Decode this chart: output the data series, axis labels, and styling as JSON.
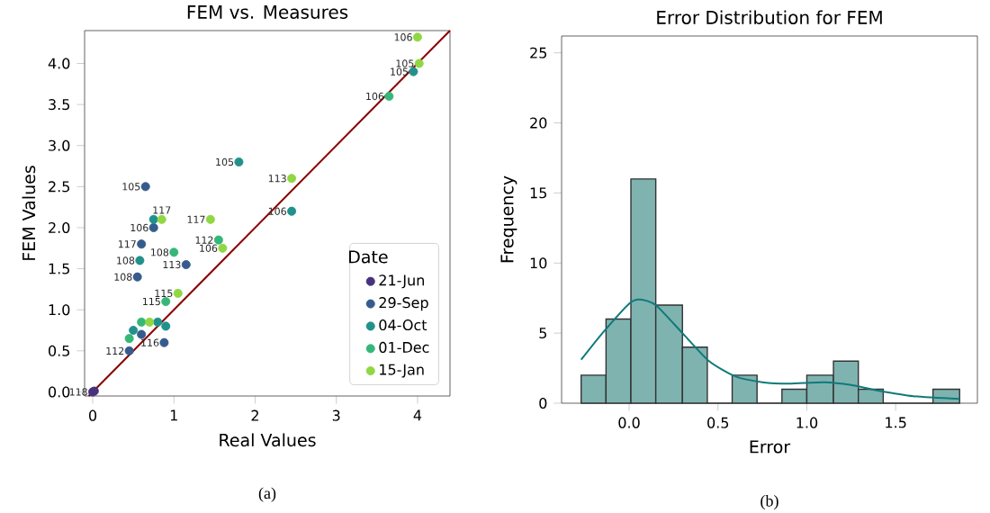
{
  "chart_data": [
    {
      "type": "scatter",
      "title": "FEM vs. Measures",
      "xlabel": "Real Values",
      "ylabel": "FEM Values",
      "legend_title": "Date",
      "legend": "bottom right",
      "xlim": [
        -0.1,
        4.4
      ],
      "ylim": [
        -0.05,
        4.4
      ],
      "xticks": [
        0,
        1,
        2,
        3,
        4
      ],
      "yticks": [
        {
          "value": 0,
          "label": "0.0"
        },
        0.5,
        {
          "value": 1,
          "label": "1.0"
        },
        1.5,
        {
          "value": 2,
          "label": "2.0"
        },
        2.5,
        {
          "value": 3,
          "label": "3.0"
        },
        3.5,
        {
          "value": 4,
          "label": "4.0"
        }
      ],
      "series": [
        {
          "name": "21-Jun",
          "color": "#46327e",
          "x": [
            0,
            0.02
          ],
          "values": [
            0,
            0.01
          ]
        },
        {
          "name": "29-Sep",
          "color": "#365c8d",
          "x": [
            0.65,
            0.75,
            0.6,
            0.55,
            1.15,
            0.88,
            0.45,
            0.6
          ],
          "values": [
            2.5,
            2.0,
            1.8,
            1.4,
            1.55,
            0.6,
            0.5,
            0.7
          ]
        },
        {
          "name": "04-Oct",
          "color": "#21918c",
          "x": [
            3.95,
            1.8,
            2.45,
            0.75,
            0.58,
            0.5,
            0.8,
            0.9
          ],
          "values": [
            3.9,
            2.8,
            2.2,
            2.1,
            1.6,
            0.75,
            0.85,
            0.8
          ]
        },
        {
          "name": "01-Dec",
          "color": "#35b779",
          "x": [
            3.65,
            1.55,
            1.0,
            0.9,
            0.6,
            0.45
          ],
          "values": [
            3.6,
            1.85,
            1.7,
            1.1,
            0.85,
            0.65
          ]
        },
        {
          "name": "15-Jan",
          "color": "#90d743",
          "x": [
            4.0,
            4.02,
            2.45,
            1.45,
            1.6,
            1.05,
            0.85,
            0.7
          ],
          "values": [
            4.32,
            4.0,
            2.6,
            2.1,
            1.75,
            1.2,
            2.1,
            0.85
          ]
        },
        {
          "type": "line",
          "color": "#8b0000",
          "x": [
            -0.05,
            4.4
          ],
          "values": [
            -0.05,
            4.4
          ]
        }
      ],
      "annotations": [
        "(a)",
        {
          "text": "118",
          "x": 0,
          "y": 0
        },
        {
          "text": "106",
          "x": 4.0,
          "y": 4.32
        },
        {
          "text": "105",
          "x": 4.02,
          "y": 4.0
        },
        {
          "text": "105",
          "x": 3.95,
          "y": 3.9
        },
        {
          "text": "106",
          "x": 3.65,
          "y": 3.6
        },
        {
          "text": "105",
          "x": 1.8,
          "y": 2.8
        },
        {
          "text": "113",
          "x": 2.45,
          "y": 2.6
        },
        {
          "text": "106",
          "x": 2.45,
          "y": 2.2
        },
        {
          "text": "117",
          "x": 1.45,
          "y": 2.1
        },
        {
          "text": "112",
          "x": 1.55,
          "y": 1.85
        },
        {
          "text": "106",
          "x": 1.6,
          "y": 1.75
        },
        {
          "text": "105",
          "x": 0.65,
          "y": 2.5
        },
        {
          "text": "117",
          "x": 0.85,
          "y": 2.1
        },
        {
          "text": "106",
          "x": 0.75,
          "y": 2.0
        },
        {
          "text": "117",
          "x": 0.6,
          "y": 1.8
        },
        {
          "text": "108",
          "x": 1.0,
          "y": 1.7
        },
        {
          "text": "108",
          "x": 0.58,
          "y": 1.6
        },
        {
          "text": "113",
          "x": 1.15,
          "y": 1.55
        },
        {
          "text": "108",
          "x": 0.55,
          "y": 1.4
        },
        {
          "text": "115",
          "x": 1.05,
          "y": 1.2
        },
        {
          "text": "115",
          "x": 0.9,
          "y": 1.1
        },
        {
          "text": "116",
          "x": 0.88,
          "y": 0.6
        },
        {
          "text": "112",
          "x": 0.45,
          "y": 0.5
        }
      ]
    },
    {
      "type": "histogram",
      "title": "Error Distribution for FEM",
      "xlabel": "Error",
      "ylabel": "Frequency",
      "xlim": [
        -0.38,
        1.96
      ],
      "ylim": [
        0,
        26.2
      ],
      "xticks": [
        {
          "value": 0,
          "label": "0.0"
        },
        0.5,
        {
          "value": 1,
          "label": "1.0"
        },
        1.5
      ],
      "yticks": [
        0,
        5,
        10,
        15,
        20,
        25
      ],
      "bins": [
        -0.27,
        -0.13,
        0.01,
        0.15,
        0.3,
        0.44,
        0.58,
        0.72,
        0.86,
        1.0,
        1.15,
        1.29,
        1.43,
        1.71,
        1.86
      ],
      "series": [
        {
          "type": "histogram",
          "color": "#7fb3b0",
          "values": [
            2,
            6,
            16,
            7,
            4,
            0,
            2,
            0,
            1,
            2,
            3,
            1,
            0,
            1
          ]
        },
        {
          "type": "line",
          "color": "#0f7a7a",
          "x": [
            -0.27,
            -0.15,
            0,
            0.06,
            0.15,
            0.3,
            0.45,
            0.6,
            0.75,
            0.9,
            1.1,
            1.25,
            1.4,
            1.6,
            1.86
          ],
          "values": [
            3.1,
            5,
            7.1,
            7.4,
            7,
            5,
            3,
            1.9,
            1.5,
            1.4,
            1.5,
            1.3,
            0.9,
            0.5,
            0.3
          ]
        }
      ],
      "annotations": [
        "(b)"
      ]
    }
  ]
}
